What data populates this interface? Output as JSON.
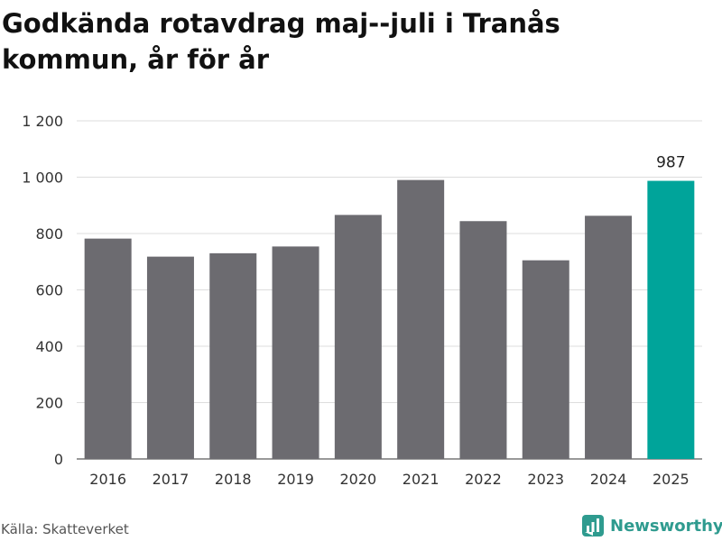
{
  "title": "Godkända rotavdrag maj--juli i Tranås kommun, år för år",
  "source": "Källa: Skatteverket",
  "brand": {
    "name": "Newsworthy",
    "icon": "bar-chart-logo-icon"
  },
  "colors": {
    "bar": "#6c6b70",
    "highlight": "#00a49a",
    "grid": "#dddddd",
    "axis": "#333333",
    "brand": "#2f9b8f"
  },
  "chart_data": {
    "type": "bar",
    "title": "Godkända rotavdrag maj--juli i Tranås kommun, år för år",
    "xlabel": "",
    "ylabel": "",
    "categories": [
      "2016",
      "2017",
      "2018",
      "2019",
      "2020",
      "2021",
      "2022",
      "2023",
      "2024",
      "2025"
    ],
    "values": [
      782,
      718,
      730,
      754,
      866,
      990,
      844,
      705,
      863,
      987
    ],
    "highlight_index": 9,
    "data_labels": [
      {
        "index": 9,
        "text": "987"
      }
    ],
    "ylim": [
      0,
      1200
    ],
    "yticks": [
      0,
      200,
      400,
      600,
      800,
      1000,
      1200
    ],
    "ytick_labels": [
      "0",
      "200",
      "400",
      "600",
      "800",
      "1 000",
      "1 200"
    ],
    "grid": true,
    "legend": "none"
  }
}
